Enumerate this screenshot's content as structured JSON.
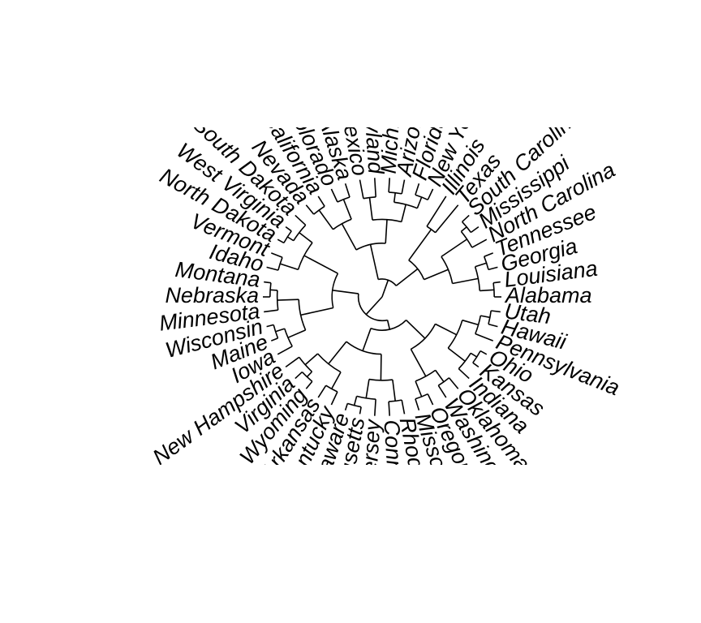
{
  "diagram": {
    "type": "circular-dendrogram",
    "leaves": [
      "Alabama",
      "Louisiana",
      "Georgia",
      "Tennessee",
      "North Carolina",
      "Mississippi",
      "South Carolina",
      "Texas",
      "Illinois",
      "New York",
      "Florida",
      "Arizona",
      "Michigan",
      "Maryland",
      "New Mexico",
      "Alaska",
      "Colorado",
      "California",
      "Nevada",
      "South Dakota",
      "West Virginia",
      "North Dakota",
      "Vermont",
      "Idaho",
      "Montana",
      "Nebraska",
      "Minnesota",
      "Wisconsin",
      "Maine",
      "Iowa",
      "New Hampshire",
      "Virginia",
      "Wyoming",
      "Arkansas",
      "Kentucky",
      "Delaware",
      "Massachusetts",
      "New Jersey",
      "Connecticut",
      "Rhode Island",
      "Missouri",
      "Oregon",
      "Washington",
      "Oklahoma",
      "Indiana",
      "Kansas",
      "Ohio",
      "Pennsylvania",
      "Hawaii",
      "Utah"
    ],
    "line_color": "#000000",
    "label_color": "#000000",
    "background": "#ffffff"
  }
}
